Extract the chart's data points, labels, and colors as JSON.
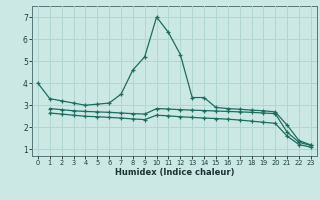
{
  "xlabel": "Humidex (Indice chaleur)",
  "bg_color": "#cce8e4",
  "grid_color": "#b0d8d0",
  "line_color": "#1a6e60",
  "xlim": [
    -0.5,
    23.5
  ],
  "ylim": [
    0.7,
    7.5
  ],
  "yticks": [
    1,
    2,
    3,
    4,
    5,
    6,
    7
  ],
  "xticks": [
    0,
    1,
    2,
    3,
    4,
    5,
    6,
    7,
    8,
    9,
    10,
    11,
    12,
    13,
    14,
    15,
    16,
    17,
    18,
    19,
    20,
    21,
    22,
    23
  ],
  "series1_x": [
    0,
    1,
    2,
    3,
    4,
    5,
    6,
    7,
    8,
    9,
    10,
    11,
    12,
    13,
    14,
    15,
    16,
    17,
    18,
    19,
    20,
    21,
    22,
    23
  ],
  "series1_y": [
    4.0,
    3.3,
    3.2,
    3.1,
    3.0,
    3.05,
    3.1,
    3.5,
    4.6,
    5.2,
    7.0,
    6.3,
    5.3,
    3.35,
    3.35,
    2.9,
    2.85,
    2.82,
    2.78,
    2.75,
    2.7,
    2.1,
    1.4,
    1.2
  ],
  "series2_x": [
    1,
    2,
    3,
    4,
    5,
    6,
    7,
    8,
    9,
    10,
    11,
    12,
    13,
    14,
    15,
    16,
    17,
    18,
    19,
    20,
    21,
    22,
    23
  ],
  "series2_y": [
    2.85,
    2.8,
    2.75,
    2.72,
    2.7,
    2.68,
    2.65,
    2.62,
    2.6,
    2.85,
    2.83,
    2.8,
    2.78,
    2.76,
    2.74,
    2.72,
    2.7,
    2.68,
    2.65,
    2.62,
    1.78,
    1.32,
    1.18
  ],
  "series3_x": [
    1,
    2,
    3,
    4,
    5,
    6,
    7,
    8,
    9,
    10,
    11,
    12,
    13,
    14,
    15,
    16,
    17,
    18,
    19,
    20,
    21,
    22,
    23
  ],
  "series3_y": [
    2.65,
    2.6,
    2.55,
    2.5,
    2.48,
    2.45,
    2.42,
    2.38,
    2.35,
    2.55,
    2.52,
    2.48,
    2.45,
    2.42,
    2.4,
    2.37,
    2.33,
    2.28,
    2.23,
    2.18,
    1.6,
    1.22,
    1.1
  ]
}
